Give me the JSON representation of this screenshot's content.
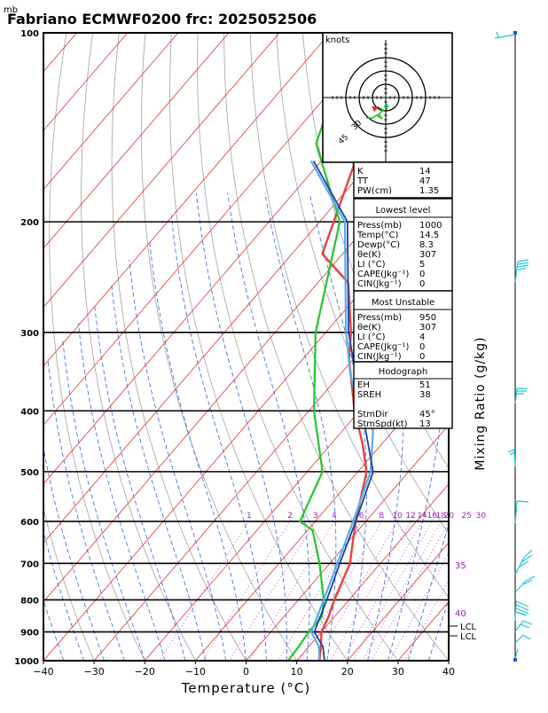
{
  "chart_data": {
    "type": "line",
    "title": "Fabriano ECMWF0200 frc: 2025052506",
    "pressure_unit": "mb",
    "xlabel": "Temperature (°C)",
    "ylabel_right": "Mixing Ratio (g/kg)",
    "hodograph_unit": "knots",
    "xlim": [
      -40,
      40
    ],
    "ylim": [
      1000,
      100
    ],
    "y_scale": "log",
    "x_ticks": [
      -40,
      -30,
      -20,
      -10,
      0,
      10,
      20,
      30,
      40
    ],
    "x_tick_labels": [
      "−40",
      "−30",
      "−20",
      "−10",
      "0",
      "10",
      "20",
      "30",
      "40"
    ],
    "y_ticks": [
      1000,
      900,
      800,
      700,
      600,
      500,
      400,
      300,
      200,
      100
    ],
    "y_tick_labels": [
      "1000",
      "900",
      "800",
      "700",
      "600",
      "500",
      "400",
      "300",
      "200",
      "100"
    ],
    "mixing_ratio_labels": [
      "1",
      "2",
      "3",
      "4",
      "6",
      "8",
      "10",
      "12",
      "14",
      "16",
      "18",
      "20",
      "25",
      "30"
    ],
    "right_edge_labels": [
      "35",
      "40"
    ],
    "lcl_labels": [
      "LCL",
      "LCL"
    ],
    "hodo_ring_labels": [
      "30",
      "45"
    ],
    "colors": {
      "temperature": "#e8403c",
      "dewpoint": "#22c52b",
      "parcel_dark": "#1f3fa8",
      "parcel_light": "#55aee8",
      "isotherm": "#e03030",
      "dry_adiabat": "#a0a0a0",
      "moist_adiabat": "#3366dd",
      "mixing_ratio": "#c040c0",
      "wind_barb": "#18c8d8"
    },
    "series": [
      {
        "name": "Temperature",
        "points": [
          [
            14.5,
            1000
          ],
          [
            12.4,
            950
          ],
          [
            10,
            900
          ],
          [
            8.8,
            850
          ],
          [
            7.1,
            800
          ],
          [
            4,
            700
          ],
          [
            1.1,
            650
          ],
          [
            -2,
            600
          ],
          [
            -8.3,
            500
          ],
          [
            -14,
            450
          ],
          [
            -21,
            400
          ],
          [
            -31,
            330
          ],
          [
            -35,
            300
          ],
          [
            -44,
            250
          ],
          [
            -54,
            225
          ],
          [
            -65,
            150
          ],
          [
            -75,
            100
          ]
        ]
      },
      {
        "name": "Dewpoint",
        "points": [
          [
            8.3,
            1000
          ],
          [
            8,
            950
          ],
          [
            7.5,
            900
          ],
          [
            7.5,
            850
          ],
          [
            5,
            800
          ],
          [
            -2,
            700
          ],
          [
            -9,
            620
          ],
          [
            -13,
            600
          ],
          [
            -17,
            500
          ],
          [
            -29,
            400
          ],
          [
            -42,
            300
          ],
          [
            -56,
            200
          ],
          [
            -74,
            150
          ],
          [
            -85,
            100
          ]
        ]
      },
      {
        "name": "Parcel",
        "points": [
          [
            14.5,
            1000
          ],
          [
            12,
            950
          ],
          [
            8,
            900
          ],
          [
            5,
            800
          ],
          [
            1.5,
            700
          ],
          [
            -2.5,
            600
          ],
          [
            -7.5,
            500
          ],
          [
            -14,
            430
          ],
          [
            -20,
            400
          ],
          [
            -28,
            350
          ],
          [
            -36,
            300
          ],
          [
            -55,
            200
          ],
          [
            -72,
            160
          ]
        ]
      },
      {
        "name": "Parcel (virtual)",
        "points": [
          [
            15.5,
            1000
          ],
          [
            12.8,
            950
          ],
          [
            8.6,
            900
          ],
          [
            5.6,
            800
          ],
          [
            2,
            700
          ],
          [
            -2,
            600
          ],
          [
            -7,
            500
          ],
          [
            -19.5,
            400
          ],
          [
            -35.5,
            300
          ],
          [
            -54.5,
            200
          ],
          [
            -71.5,
            160
          ]
        ]
      }
    ],
    "indices": {
      "top": [
        {
          "label": "K",
          "value": "14"
        },
        {
          "label": "TT",
          "value": "47"
        },
        {
          "label": "PW(cm)",
          "value": "1.35"
        }
      ],
      "lowest_level": {
        "title": "Lowest level",
        "rows": [
          {
            "label": "Press(mb)",
            "value": "1000"
          },
          {
            "label": "Temp(°C)",
            "value": "14.5"
          },
          {
            "label": "Dewp(°C)",
            "value": "8.3"
          },
          {
            "label": "θe(K)",
            "value": "307"
          },
          {
            "label": "LI (°C)",
            "value": "5"
          },
          {
            "label": "CAPE(Jkg⁻¹)",
            "value": "0"
          },
          {
            "label": "CIN(Jkg⁻¹)",
            "value": "0"
          }
        ]
      },
      "most_unstable": {
        "title": "Most Unstable",
        "rows": [
          {
            "label": "Press(mb)",
            "value": "950"
          },
          {
            "label": "θe(K)",
            "value": "307"
          },
          {
            "label": "LI (°C)",
            "value": "4"
          },
          {
            "label": "CAPE(Jkg⁻¹)",
            "value": "0"
          },
          {
            "label": "CIN(Jkg⁻¹)",
            "value": "0"
          }
        ]
      },
      "hodograph": {
        "title": "Hodograph",
        "rows": [
          {
            "label": "EH",
            "value": "51"
          },
          {
            "label": "SREH",
            "value": "38"
          },
          {
            "label": "",
            "value": ""
          },
          {
            "label": "StmDir",
            "value": "45°"
          },
          {
            "label": "StmSpd(kt)",
            "value": "13"
          }
        ]
      }
    }
  }
}
